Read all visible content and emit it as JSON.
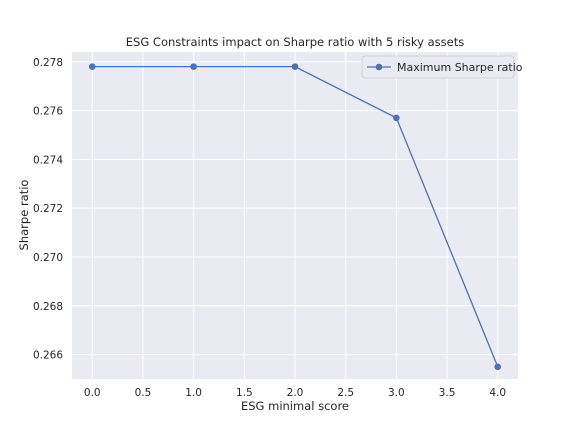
{
  "chart_data": {
    "type": "line",
    "title": "ESG Constraints impact on Sharpe ratio with 5 risky assets",
    "xlabel": "ESG minimal score",
    "ylabel": "Sharpe ratio",
    "xlim": [
      -0.2,
      4.2
    ],
    "ylim": [
      0.265,
      0.2784
    ],
    "x_ticks": [
      0.0,
      0.5,
      1.0,
      1.5,
      2.0,
      2.5,
      3.0,
      3.5,
      4.0
    ],
    "x_tick_labels": [
      "0.0",
      "0.5",
      "1.0",
      "1.5",
      "2.0",
      "2.5",
      "3.0",
      "3.5",
      "4.0"
    ],
    "y_ticks": [
      0.266,
      0.268,
      0.27,
      0.272,
      0.274,
      0.276,
      0.278
    ],
    "y_tick_labels": [
      "0.266",
      "0.268",
      "0.270",
      "0.272",
      "0.274",
      "0.276",
      "0.278"
    ],
    "grid": true,
    "legend_position": "top-right",
    "series": [
      {
        "name": "Maximum Sharpe ratio",
        "color": "#4c72b0",
        "marker": "circle",
        "x": [
          0,
          1,
          2,
          3,
          4
        ],
        "y": [
          0.2778,
          0.2778,
          0.2778,
          0.2757,
          0.2655
        ]
      }
    ]
  }
}
